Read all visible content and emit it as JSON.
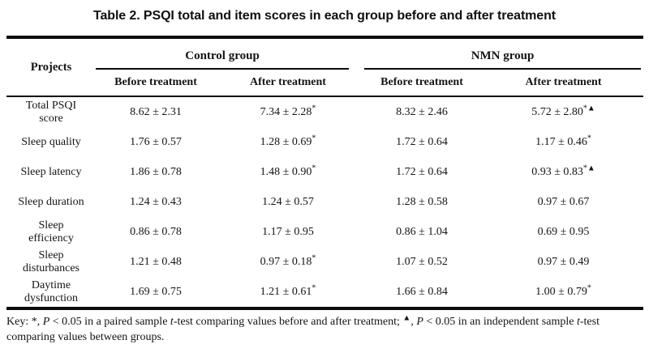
{
  "page": {
    "title": "Table 2. PSQI total and item scores in each group before and after treatment"
  },
  "table": {
    "corner_header": "Projects",
    "groups": [
      {
        "label": "Control group"
      },
      {
        "label": "NMN group"
      }
    ],
    "subheaders": [
      "Before treatment",
      "After treatment",
      "Before treatment",
      "After treatment"
    ],
    "rows": [
      {
        "project_lines": [
          "Total PSQI",
          "score"
        ],
        "cells": [
          {
            "v": "8.62 ± 2.31",
            "sup": ""
          },
          {
            "v": "7.34 ± 2.28",
            "sup": "*"
          },
          {
            "v": "8.32 ± 2.46",
            "sup": ""
          },
          {
            "v": "5.72 ± 2.80",
            "sup": "*▲"
          }
        ]
      },
      {
        "project_lines": [
          "Sleep quality"
        ],
        "cells": [
          {
            "v": "1.76 ± 0.57",
            "sup": ""
          },
          {
            "v": "1.28 ± 0.69",
            "sup": "*"
          },
          {
            "v": "1.72 ± 0.64",
            "sup": ""
          },
          {
            "v": "1.17 ± 0.46",
            "sup": "*"
          }
        ]
      },
      {
        "project_lines": [
          "Sleep latency"
        ],
        "cells": [
          {
            "v": "1.86 ± 0.78",
            "sup": ""
          },
          {
            "v": "1.48 ± 0.90",
            "sup": "*"
          },
          {
            "v": "1.72 ± 0.64",
            "sup": ""
          },
          {
            "v": "0.93 ± 0.83",
            "sup": "*▲"
          }
        ]
      },
      {
        "project_lines": [
          "Sleep duration"
        ],
        "cells": [
          {
            "v": "1.24 ± 0.43",
            "sup": ""
          },
          {
            "v": "1.24 ± 0.57",
            "sup": ""
          },
          {
            "v": "1.28 ± 0.58",
            "sup": ""
          },
          {
            "v": "0.97 ± 0.67",
            "sup": ""
          }
        ]
      },
      {
        "project_lines": [
          "Sleep",
          "efficiency"
        ],
        "cells": [
          {
            "v": "0.86 ± 0.78",
            "sup": ""
          },
          {
            "v": "1.17 ± 0.95",
            "sup": ""
          },
          {
            "v": "0.86 ± 1.04",
            "sup": ""
          },
          {
            "v": "0.69 ± 0.95",
            "sup": ""
          }
        ]
      },
      {
        "project_lines": [
          "Sleep",
          "disturbances"
        ],
        "cells": [
          {
            "v": "1.21 ± 0.48",
            "sup": ""
          },
          {
            "v": "0.97 ± 0.18",
            "sup": "*"
          },
          {
            "v": "1.07 ± 0.52",
            "sup": ""
          },
          {
            "v": "0.97 ± 0.49",
            "sup": ""
          }
        ]
      },
      {
        "project_lines": [
          "Daytime",
          "dysfunction"
        ],
        "cells": [
          {
            "v": "1.69 ± 0.75",
            "sup": ""
          },
          {
            "v": "1.21 ± 0.61",
            "sup": "*"
          },
          {
            "v": "1.66 ± 0.84",
            "sup": ""
          },
          {
            "v": "1.00 ± 0.79",
            "sup": "*"
          }
        ]
      }
    ]
  },
  "key": {
    "line1": [
      {
        "t": "Key: *, "
      },
      {
        "t": "P"
      },
      {
        "t": " < 0.05 in a paired sample "
      },
      {
        "t": "t"
      },
      {
        "t": "-test comparing values before and after treatment; "
      },
      {
        "t": "▲"
      },
      {
        "t": ", "
      },
      {
        "t": "P"
      },
      {
        "t": " < 0.05 in an independent sample "
      },
      {
        "t": "t"
      },
      {
        "t": "-test"
      }
    ],
    "line2": [
      {
        "t": "comparing values between groups."
      }
    ]
  }
}
